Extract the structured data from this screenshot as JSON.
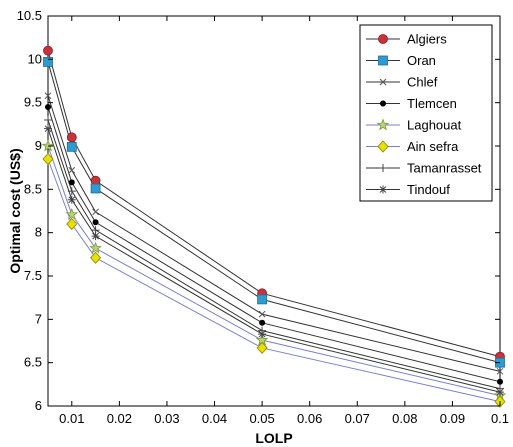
{
  "chart_data": {
    "type": "line",
    "xlabel": "LOLP",
    "ylabel": "Optimal cost (US$)",
    "xlim": [
      0.005,
      0.1
    ],
    "ylim": [
      6,
      10.5
    ],
    "x_ticks": [
      "0.01",
      "0.02",
      "0.03",
      "0.04",
      "0.05",
      "0.06",
      "0.07",
      "0.08",
      "0.09",
      "0.1"
    ],
    "x_tick_values": [
      0.01,
      0.02,
      0.03,
      0.04,
      0.05,
      0.06,
      0.07,
      0.08,
      0.09,
      0.1
    ],
    "y_ticks": [
      "6",
      "6.5",
      "7",
      "7.5",
      "8",
      "8.5",
      "9",
      "9.5",
      "10",
      "10.5"
    ],
    "y_tick_values": [
      6,
      6.5,
      7,
      7.5,
      8,
      8.5,
      9,
      9.5,
      10,
      10.5
    ],
    "grid": false,
    "legend_position": "top-right",
    "x": [
      0.005,
      0.01,
      0.015,
      0.05,
      0.1
    ],
    "series": [
      {
        "name": "Algiers",
        "marker": "circle",
        "color": "#c8323c",
        "values": [
          10.1,
          9.1,
          8.6,
          7.3,
          6.57
        ]
      },
      {
        "name": "Oran",
        "marker": "square",
        "color": "#2e9bd0",
        "values": [
          9.97,
          8.99,
          8.51,
          7.23,
          6.5
        ]
      },
      {
        "name": "Chlef",
        "marker": "x",
        "color": "#555555",
        "values": [
          9.58,
          8.72,
          8.24,
          7.06,
          6.4
        ]
      },
      {
        "name": "Tlemcen",
        "marker": "dot",
        "color": "#000000",
        "values": [
          9.45,
          8.58,
          8.12,
          6.96,
          6.28
        ]
      },
      {
        "name": "Laghouat",
        "marker": "star",
        "color": "#7a9a3a",
        "values": [
          9.0,
          8.21,
          7.82,
          6.76,
          6.12
        ]
      },
      {
        "name": "Ain sefra",
        "marker": "diamond",
        "color": "#e8e000",
        "values": [
          8.85,
          8.1,
          7.71,
          6.67,
          6.05
        ]
      },
      {
        "name": "Tamanrasset",
        "marker": "plus",
        "color": "#444444",
        "values": [
          9.3,
          8.48,
          8.03,
          6.87,
          6.2
        ]
      },
      {
        "name": "Tindouf",
        "marker": "asterisk",
        "color": "#444444",
        "values": [
          9.2,
          8.38,
          7.96,
          6.83,
          6.16
        ]
      }
    ]
  }
}
